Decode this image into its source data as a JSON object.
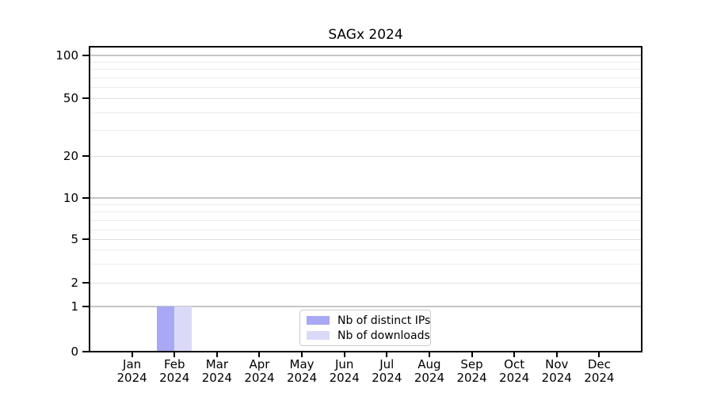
{
  "chart_data": {
    "type": "bar",
    "title": "SAGx 2024",
    "categories": [
      "Jan 2024",
      "Feb 2024",
      "Mar 2024",
      "Apr 2024",
      "May 2024",
      "Jun 2024",
      "Jul 2024",
      "Aug 2024",
      "Sep 2024",
      "Oct 2024",
      "Nov 2024",
      "Dec 2024"
    ],
    "x_axis": {
      "months": [
        "Jan",
        "Feb",
        "Mar",
        "Apr",
        "May",
        "Jun",
        "Jul",
        "Aug",
        "Sep",
        "Oct",
        "Nov",
        "Dec"
      ],
      "year": "2024"
    },
    "y_axis": {
      "scale": "log-like with 0 baseline",
      "tick_labels": [
        "100",
        "50",
        "20",
        "10",
        "5",
        "2",
        "1",
        "0"
      ],
      "tick_values": [
        100,
        50,
        20,
        10,
        5,
        2,
        1,
        0
      ],
      "minor_gridline_values": [
        90,
        80,
        70,
        60,
        40,
        30,
        9,
        8,
        7,
        6,
        4,
        3
      ],
      "ylim": [
        0,
        115
      ],
      "grid": true
    },
    "series": [
      {
        "name": "Nb of distinct IPs",
        "color": "#a8a8f5",
        "values": [
          0,
          1,
          0,
          0,
          0,
          0,
          0,
          0,
          0,
          0,
          0,
          0
        ]
      },
      {
        "name": "Nb of downloads",
        "color": "#dadaf7",
        "values": [
          0,
          1,
          0,
          0,
          0,
          0,
          0,
          0,
          0,
          0,
          0,
          0
        ]
      }
    ],
    "legend": {
      "entries": [
        "Nb of distinct IPs",
        "Nb of downloads"
      ],
      "position": "inside-bottom-center"
    }
  },
  "colors": {
    "background": "#ffffff",
    "axis_frame": "#000000",
    "grid_decade": "#c6c6c6",
    "grid_labeled": "#dfdfdf",
    "grid_minor": "#ececec",
    "text": "#000000",
    "legend_border": "#cccccc"
  }
}
